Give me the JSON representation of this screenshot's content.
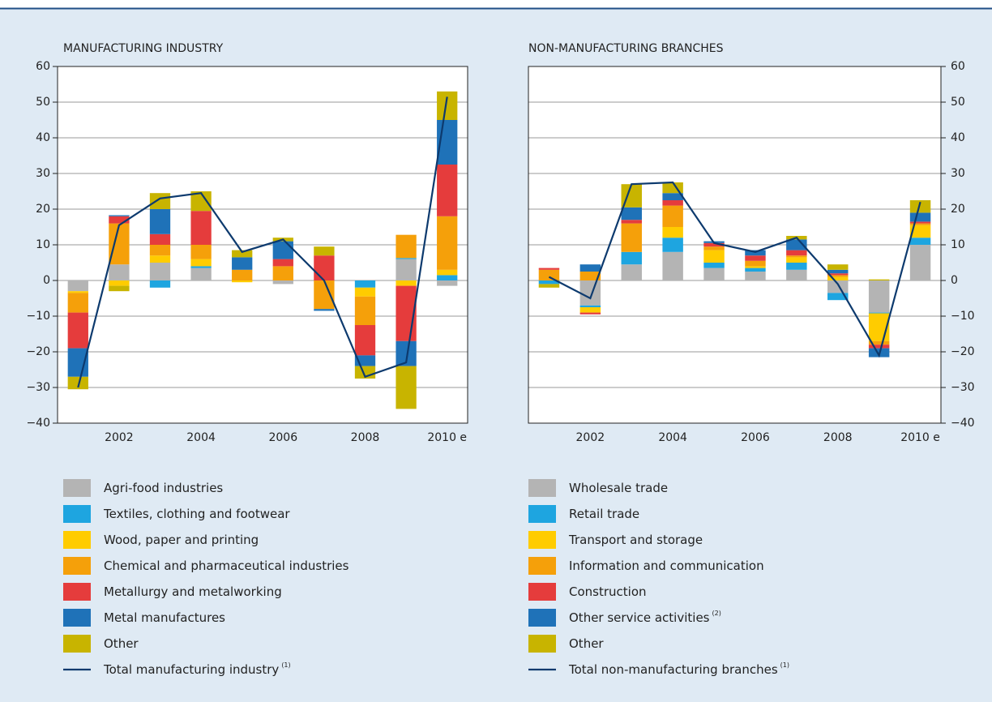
{
  "chart_data": [
    {
      "type": "bar",
      "stacked": true,
      "title": "MANUFACTURING INDUSTRY",
      "y_axis_side": "left",
      "grid": true,
      "categories": [
        null,
        "2002",
        null,
        "2004",
        null,
        "2006",
        null,
        "2008",
        null,
        "2010 e"
      ],
      "ylim": [
        -40,
        60
      ],
      "yticks": [
        {
          "value": -40,
          "label": "−40"
        },
        {
          "value": -30,
          "label": "−30"
        },
        {
          "value": -20,
          "label": "−20"
        },
        {
          "value": -10,
          "label": "−10"
        },
        0,
        10,
        20,
        30,
        40,
        50,
        60
      ],
      "series": [
        {
          "name": "Agri-food industries",
          "color": "#b4b4b4",
          "values": [
            -3,
            4.5,
            5,
            3.5,
            0,
            -1,
            0,
            0,
            6,
            -1.5
          ]
        },
        {
          "name": "Textiles, clothing and footwear",
          "color": "#1ea5e0",
          "values": [
            0,
            0,
            -2,
            0.5,
            0,
            0,
            0,
            -2,
            0.3,
            1.5
          ]
        },
        {
          "name": "Wood, paper and printing",
          "color": "#ffcc00",
          "values": [
            -0.5,
            -1.5,
            2,
            2,
            -0.5,
            0,
            0,
            -2.5,
            -1.5,
            1.5
          ]
        },
        {
          "name": "Chemical and pharmaceutical industries",
          "color": "#f5a00a",
          "values": [
            -5.5,
            11.5,
            3,
            4,
            3,
            4,
            -8,
            -8,
            6.5,
            15
          ]
        },
        {
          "name": "Metallurgy and metalworking",
          "color": "#e53c3c",
          "values": [
            -10,
            2,
            3,
            9.5,
            0,
            2,
            7,
            -8.5,
            -15.5,
            14.5
          ]
        },
        {
          "name": "Metal manufactures",
          "color": "#1f72b8",
          "values": [
            -8,
            0.3,
            7,
            0,
            3.5,
            5,
            -0.5,
            -3,
            -7,
            12.5
          ]
        },
        {
          "name": "Other",
          "color": "#c8b400",
          "values": [
            -3.5,
            -1.5,
            4.5,
            5.5,
            2,
            1,
            2.5,
            -3.5,
            -12,
            8
          ]
        },
        {
          "name": "Total manufacturing industry",
          "footnote": "(1)",
          "type": "line",
          "color": "#0d3a6e",
          "values": [
            -30,
            15.5,
            23,
            24.5,
            8,
            11.5,
            0,
            -27,
            -23,
            51.5
          ]
        }
      ]
    },
    {
      "type": "bar",
      "stacked": true,
      "title": "NON-MANUFACTURING BRANCHES",
      "y_axis_side": "right",
      "grid": true,
      "categories": [
        null,
        "2002",
        null,
        "2004",
        null,
        "2006",
        null,
        "2008",
        null,
        "2010 e"
      ],
      "ylim": [
        -40,
        60
      ],
      "yticks": [
        {
          "value": -40,
          "label": "−40"
        },
        {
          "value": -30,
          "label": "−30"
        },
        {
          "value": -20,
          "label": "−20"
        },
        {
          "value": -10,
          "label": "−10"
        },
        0,
        10,
        20,
        30,
        40,
        50,
        60
      ],
      "series": [
        {
          "name": "Wholesale trade",
          "color": "#b4b4b4",
          "values": [
            0,
            -7,
            4.5,
            8,
            3.5,
            2.5,
            3,
            -3.5,
            -9,
            10
          ]
        },
        {
          "name": "Retail trade",
          "color": "#1ea5e0",
          "values": [
            -1,
            -0.5,
            3.5,
            4,
            1.5,
            1,
            2,
            -2,
            -0.2,
            2
          ]
        },
        {
          "name": "Transport and storage",
          "color": "#ffcc00",
          "values": [
            0,
            -1.5,
            0,
            3,
            3.5,
            0.5,
            1.5,
            1,
            -7.8,
            3.5
          ]
        },
        {
          "name": "Information and communication",
          "color": "#f5a00a",
          "values": [
            3,
            2.5,
            8,
            6,
            1,
            1.5,
            0.5,
            0.5,
            -1,
            0.5
          ]
        },
        {
          "name": "Construction",
          "color": "#e53c3c",
          "values": [
            0.5,
            -0.5,
            1,
            1.5,
            1,
            1.5,
            1.5,
            0.5,
            -1,
            0.5
          ]
        },
        {
          "name": "Other service activities",
          "footnote": "(2)",
          "color": "#1f72b8",
          "values": [
            0,
            2,
            3.5,
            2,
            0.5,
            1.5,
            3,
            1,
            -2.5,
            2.5
          ]
        },
        {
          "name": "Other",
          "color": "#c8b400",
          "values": [
            -1,
            0,
            6.5,
            3,
            0,
            0,
            1,
            1.5,
            0.3,
            3.5
          ]
        },
        {
          "name": "Total non-manufacturing branches",
          "footnote": "(1)",
          "type": "line",
          "color": "#0d3a6e",
          "values": [
            1,
            -5,
            27,
            27.5,
            10.5,
            8,
            12,
            -1,
            -21,
            22
          ]
        }
      ]
    }
  ]
}
